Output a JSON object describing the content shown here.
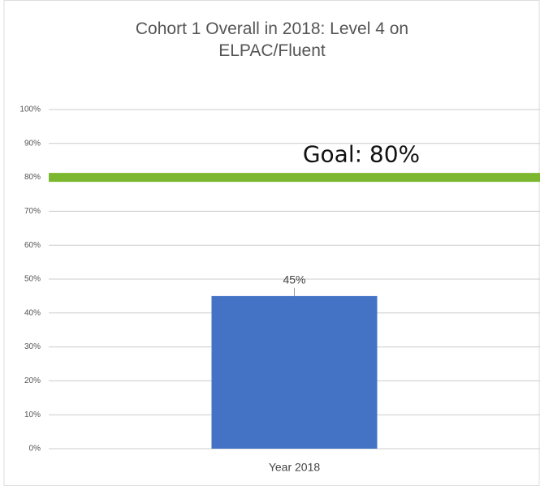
{
  "chart_data": {
    "type": "bar",
    "title": "Cohort 1 Overall in 2018: Level 4 on ELPAC/Fluent",
    "categories": [
      "Year 2018"
    ],
    "values": [
      45
    ],
    "value_labels": [
      "45%"
    ],
    "color": "#4472c4",
    "ylim": [
      0,
      100
    ],
    "yticks": [
      {
        "value": 0,
        "label": "0%"
      },
      {
        "value": 10,
        "label": "10%"
      },
      {
        "value": 20,
        "label": "20%"
      },
      {
        "value": 30,
        "label": "30%"
      },
      {
        "value": 40,
        "label": "40%"
      },
      {
        "value": 50,
        "label": "50%"
      },
      {
        "value": 60,
        "label": "60%"
      },
      {
        "value": 70,
        "label": "70%"
      },
      {
        "value": 80,
        "label": "80%"
      },
      {
        "value": 90,
        "label": "90%"
      },
      {
        "value": 100,
        "label": "100%"
      }
    ],
    "grid": true,
    "goal": {
      "value": 80,
      "label": "Goal: 80%",
      "color": "#7cb82f"
    }
  }
}
